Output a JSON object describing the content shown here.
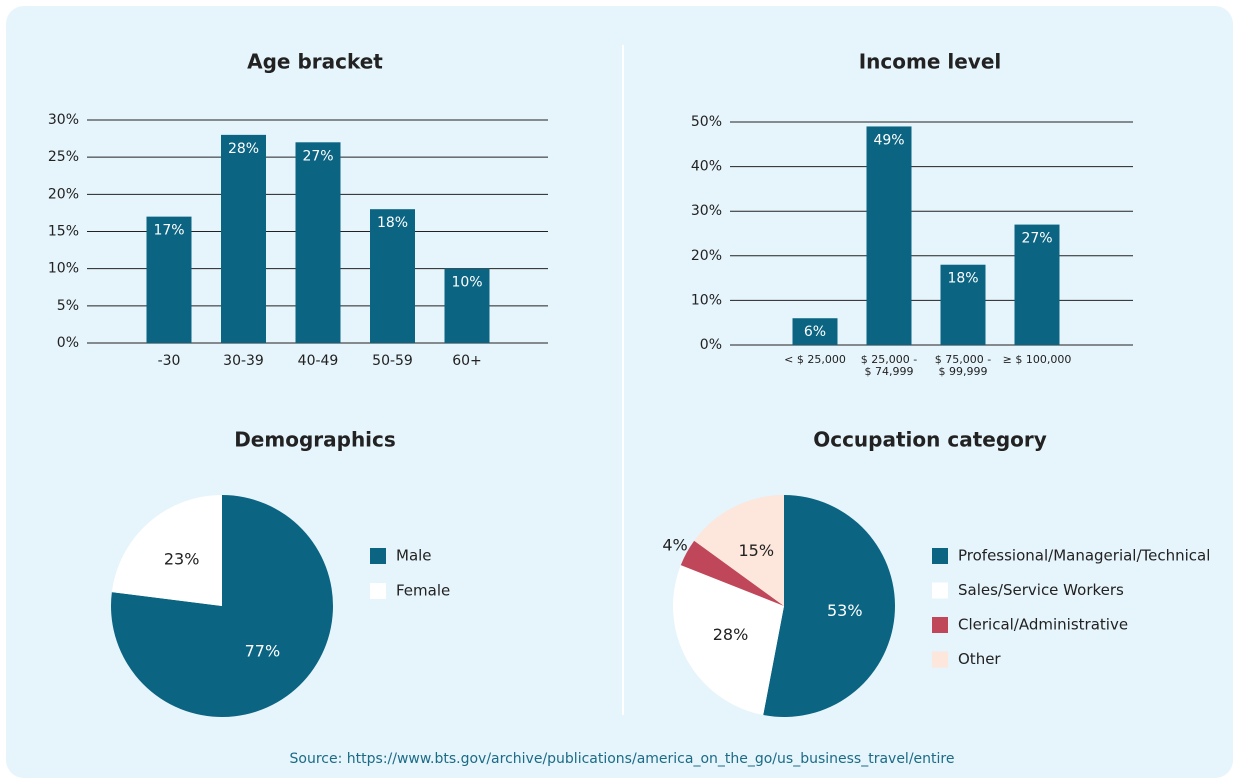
{
  "chart_data": [
    {
      "type": "bar",
      "title": "Age bracket",
      "categories": [
        "-30",
        "30-39",
        "40-49",
        "50-59",
        "60+"
      ],
      "values": [
        17,
        28,
        27,
        18,
        10
      ],
      "value_labels": [
        "17%",
        "28%",
        "27%",
        "18%",
        "10%"
      ],
      "color": "#0b6482",
      "ylim": [
        0,
        30
      ],
      "yticks": [
        {
          "value": 0,
          "label": "0%"
        },
        {
          "value": 5,
          "label": "5%"
        },
        {
          "value": 10,
          "label": "10%"
        },
        {
          "value": 15,
          "label": "15%"
        },
        {
          "value": 20,
          "label": "20%"
        },
        {
          "value": 25,
          "label": "25%"
        },
        {
          "value": 30,
          "label": "30%"
        }
      ],
      "grid": true
    },
    {
      "type": "bar",
      "title": "Income level",
      "categories": [
        "< $ 25,000",
        "$ 25,000 -\n$ 74,999",
        "$ 75,000 -\n$ 99,999",
        "≥ $ 100,000"
      ],
      "values": [
        6,
        49,
        18,
        27
      ],
      "value_labels": [
        "6%",
        "49%",
        "18%",
        "27%"
      ],
      "color": "#0b6482",
      "ylim": [
        0,
        50
      ],
      "yticks": [
        {
          "value": 0,
          "label": "0%"
        },
        {
          "value": 10,
          "label": "10%"
        },
        {
          "value": 20,
          "label": "20%"
        },
        {
          "value": 30,
          "label": "30%"
        },
        {
          "value": 40,
          "label": "40%"
        },
        {
          "value": 50,
          "label": "50%"
        }
      ],
      "grid": true
    },
    {
      "type": "pie",
      "title": "Demographics",
      "categories": [
        "Male",
        "Female"
      ],
      "values": [
        77,
        23
      ],
      "value_labels": [
        "77%",
        "23%"
      ],
      "colors": [
        "#0b6482",
        "#ffffff"
      ]
    },
    {
      "type": "pie",
      "title": "Occupation category",
      "categories": [
        "Professional/Managerial/Technical",
        "Sales/Service Workers",
        "Clerical/Administrative",
        "Other"
      ],
      "values": [
        53,
        28,
        4,
        15
      ],
      "value_labels": [
        "53%",
        "28%",
        "4%",
        "15%"
      ],
      "colors": [
        "#0b6482",
        "#ffffff",
        "#c0475a",
        "#fde6dc"
      ]
    }
  ],
  "source": "Source: https://www.bts.gov/archive/publications/america_on_the_go/us_business_travel/entire"
}
